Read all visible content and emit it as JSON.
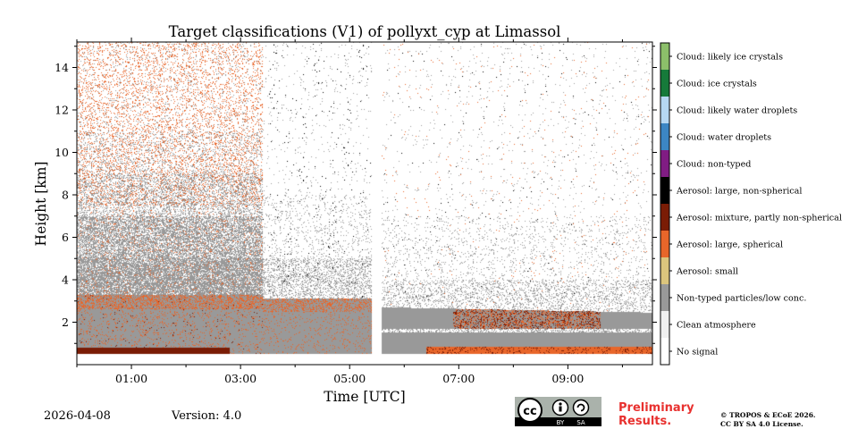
{
  "chart_data": {
    "type": "heatmap",
    "title": "Target classifications (V1) of pollyxt_cyp at Limassol",
    "xlabel": "Time [UTC]",
    "ylabel": "Height [km]",
    "xlim": [
      0.0,
      10.55
    ],
    "ylim": [
      0.0,
      15.2
    ],
    "x_ticks": [
      1,
      3,
      5,
      7,
      9
    ],
    "x_tick_labels": [
      "01:00",
      "03:00",
      "05:00",
      "07:00",
      "09:00"
    ],
    "y_ticks": [
      2,
      4,
      6,
      8,
      10,
      12,
      14
    ],
    "y_tick_labels": [
      "2",
      "4",
      "6",
      "8",
      "10",
      "12",
      "14"
    ],
    "data_gaps_hours": [
      5.5
    ],
    "colorbar": {
      "classes": [
        {
          "label": "Cloud: likely ice crystals",
          "color": "#8cbf6a"
        },
        {
          "label": "Cloud: ice crystals",
          "color": "#167a3a"
        },
        {
          "label": "Cloud: likely water droplets",
          "color": "#b6d8f2"
        },
        {
          "label": "Cloud: water droplets",
          "color": "#3c86c3"
        },
        {
          "label": "Cloud: non-typed",
          "color": "#801c83"
        },
        {
          "label": "Aerosol: large, non-spherical",
          "color": "#000000"
        },
        {
          "label": "Aerosol: mixture, partly non-spherical",
          "color": "#7a1c05"
        },
        {
          "label": "Aerosol: large, spherical",
          "color": "#e8662a"
        },
        {
          "label": "Aerosol: small",
          "color": "#dcc57d"
        },
        {
          "label": "Non-typed particles/low conc.",
          "color": "#999999"
        },
        {
          "label": "Clean atmosphere",
          "color": "#f0f0f0"
        },
        {
          "label": "No signal",
          "color": "#ffffff"
        }
      ]
    }
  },
  "footer": {
    "date": "2026-04-08",
    "version": "Version: 4.0",
    "preliminary": [
      "Preliminary",
      "Results."
    ],
    "copyright": [
      "© TROPOS & ECoE 2026.",
      "CC BY SA 4.0 License."
    ],
    "cc_badge": {
      "cc": "cc",
      "by": "BY",
      "sa": "SA"
    }
  }
}
